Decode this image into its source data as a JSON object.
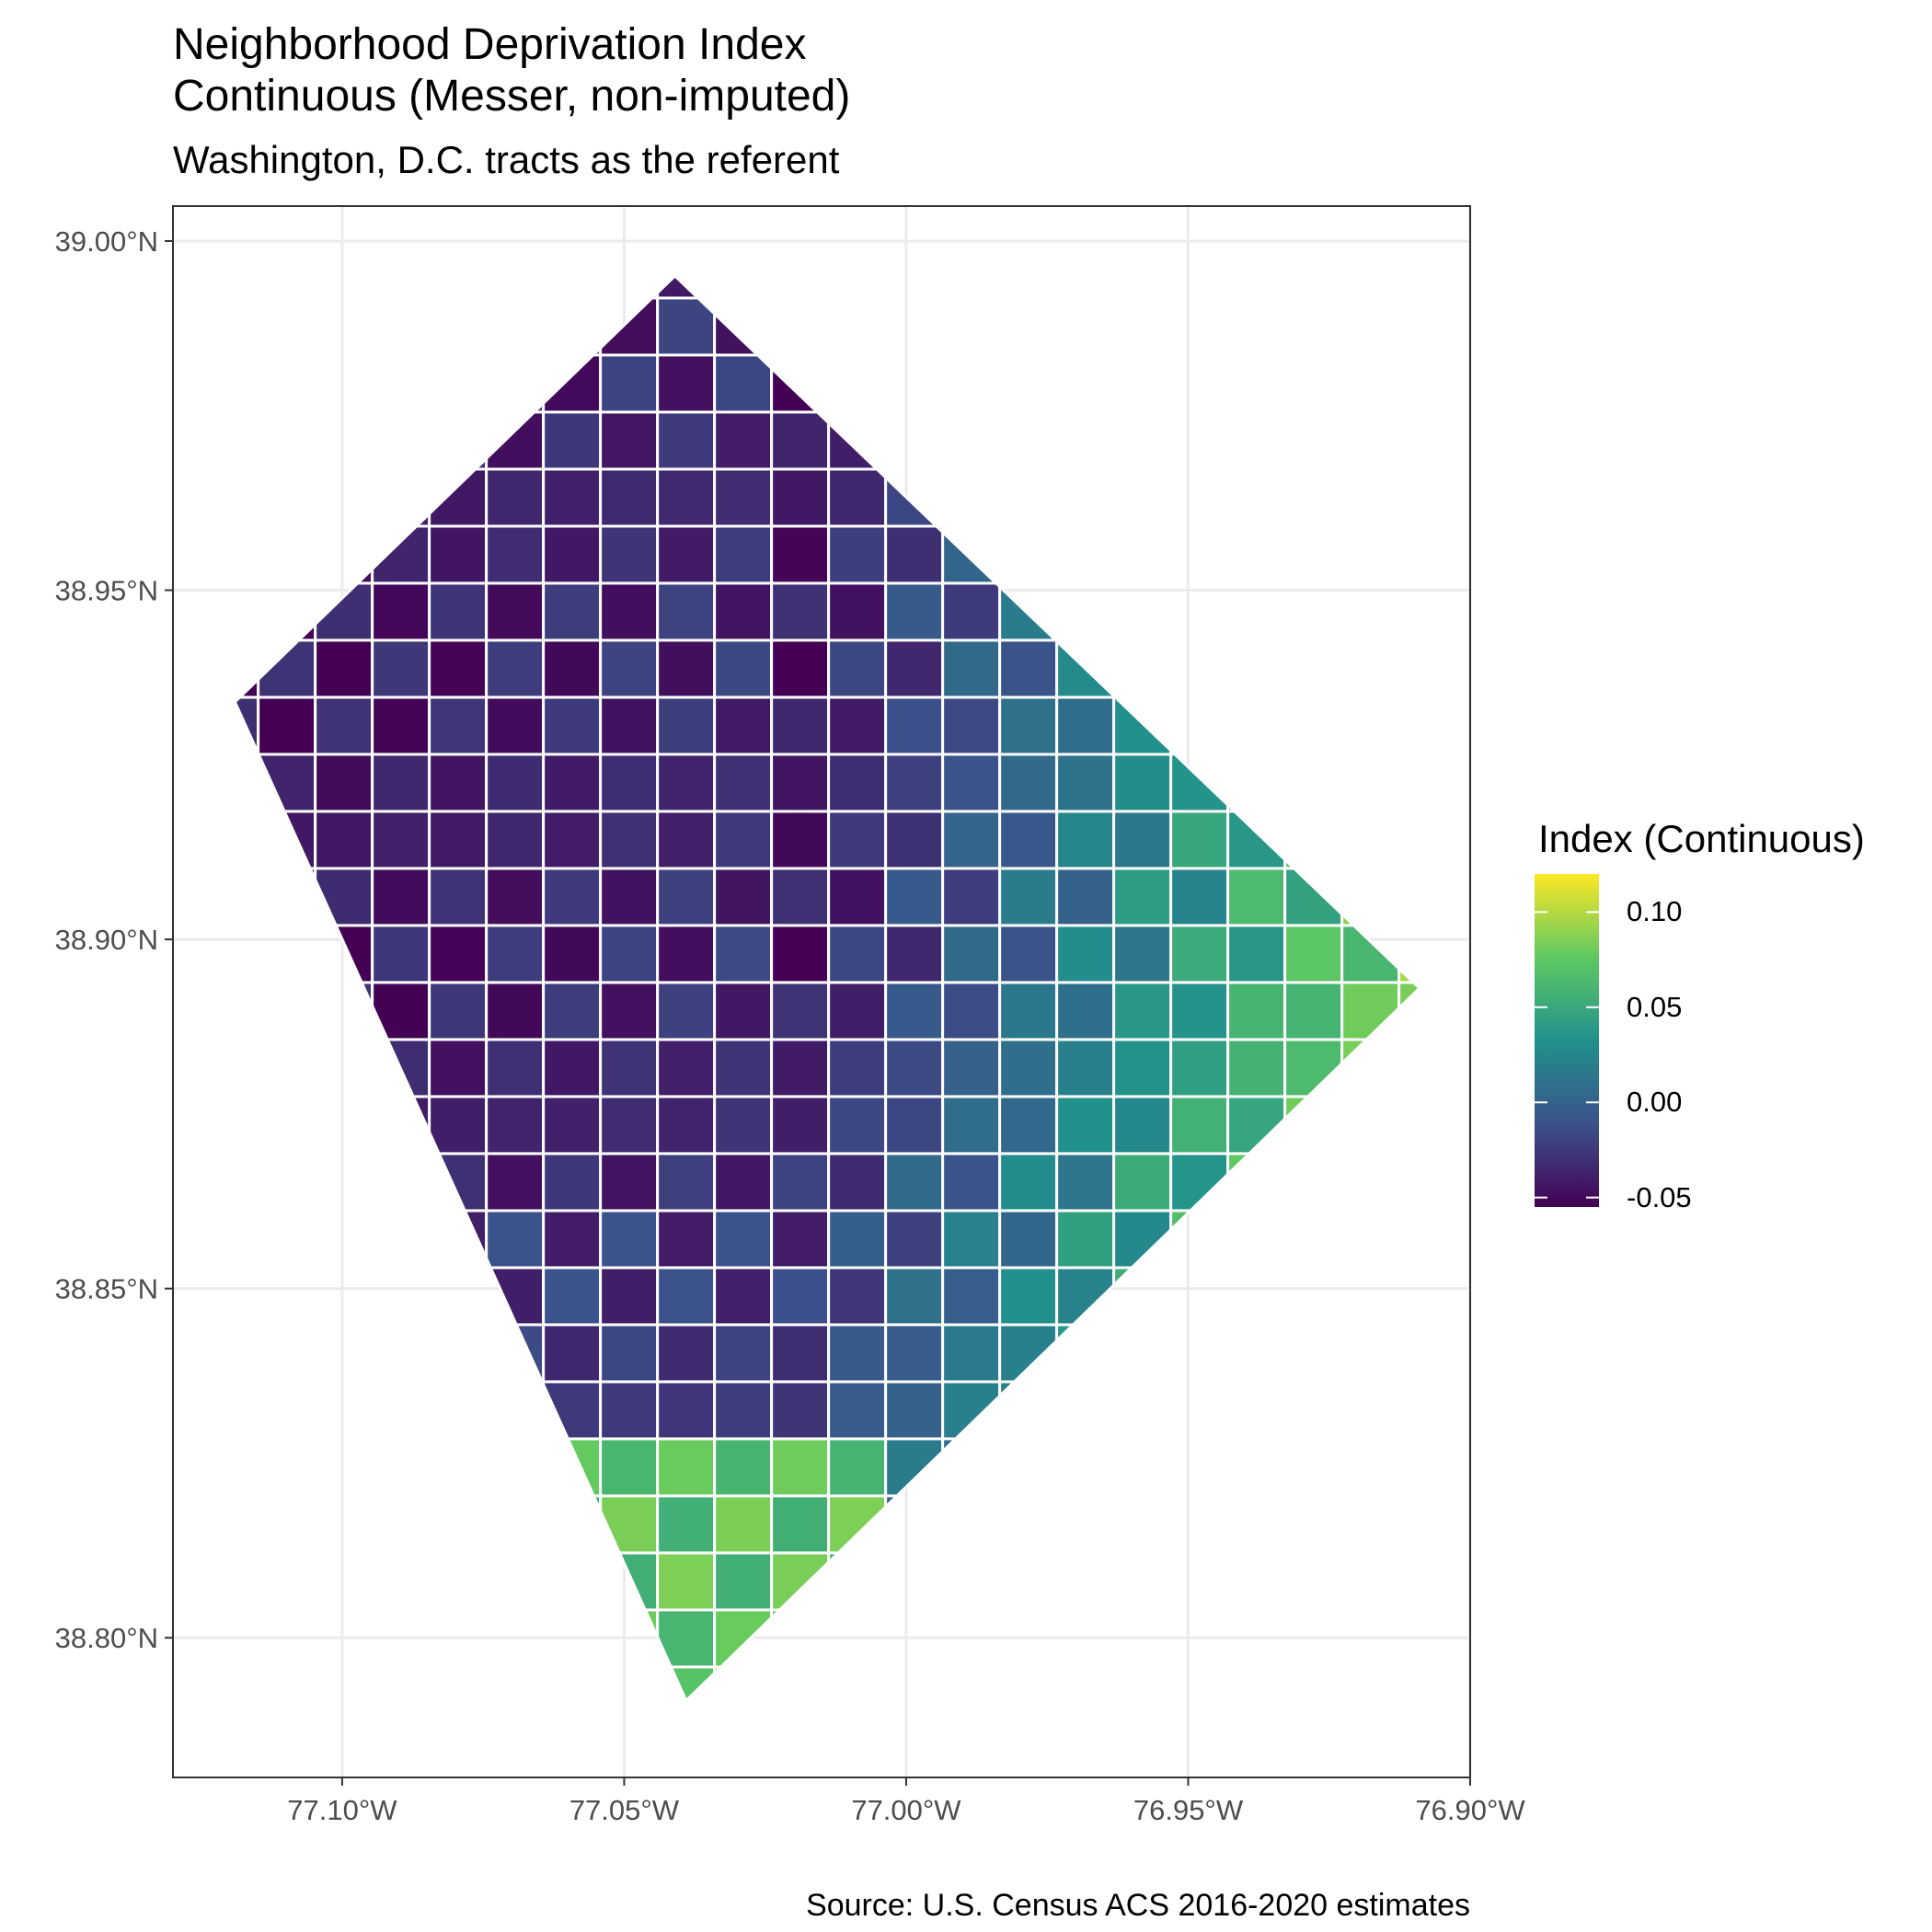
{
  "title_line1": "Neighborhood Deprivation Index",
  "title_line2": "Continuous (Messer, non-imputed)",
  "subtitle": "Washington, D.C. tracts as the referent",
  "caption": "Source: U.S. Census ACS 2016-2020 estimates",
  "colors": {
    "na": "#808080",
    "border": "#ffffff",
    "grid": "#ebebeb",
    "panel_border": "#333333",
    "scale": [
      "#440154",
      "#3b528b",
      "#21918c",
      "#5ec962",
      "#fde725"
    ]
  },
  "chart_data": {
    "type": "choropleth",
    "xlabel": "",
    "ylabel": "",
    "x_ticks": [
      "77.10°W",
      "77.05°W",
      "77.00°W",
      "76.95°W",
      "76.90°W"
    ],
    "y_ticks": [
      "38.80°N",
      "38.85°N",
      "38.90°N",
      "38.95°N",
      "39.00°N"
    ],
    "x_tick_values": [
      -77.1,
      -77.05,
      -77.0,
      -76.95,
      -76.9
    ],
    "y_tick_values": [
      38.8,
      38.85,
      38.9,
      38.95,
      39.0
    ],
    "xlim": [
      -77.13,
      -76.9
    ],
    "ylim": [
      38.78,
      39.005
    ],
    "boundary_vertices": [
      [
        -77.119,
        38.934
      ],
      [
        -77.041,
        38.995
      ],
      [
        -76.909,
        38.893
      ],
      [
        -77.039,
        38.791
      ]
    ],
    "grid": true,
    "legend": {
      "title": "Index (Continuous)",
      "position": "right",
      "limits": [
        -0.055,
        0.12
      ],
      "ticks": [
        -0.05,
        0.0,
        0.05,
        0.1
      ],
      "tick_labels": [
        "-0.05",
        "0.00",
        "0.05",
        "0.10"
      ]
    }
  }
}
